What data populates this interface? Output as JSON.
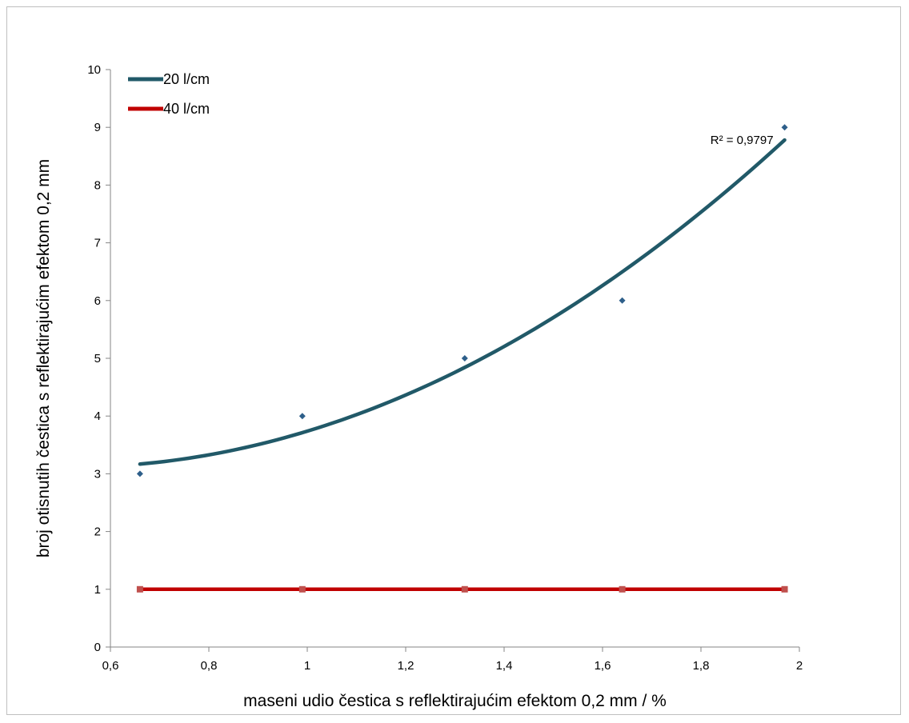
{
  "chart_data": {
    "type": "scatter",
    "xlabel": "maseni udio čestica s reflektirajućim efektom 0,2 mm / %",
    "ylabel": "broj otisnutih čestica s reflektirajućim efektom 0,2 mm",
    "xlim": [
      0.6,
      2
    ],
    "ylim": [
      0,
      10
    ],
    "xticks": [
      0.6,
      0.8,
      1,
      1.2,
      1.4,
      1.6,
      1.8,
      2
    ],
    "xtick_labels": [
      "0,6",
      "0,8",
      "1",
      "1,2",
      "1,4",
      "1,6",
      "1,8",
      "2"
    ],
    "yticks": [
      0,
      1,
      2,
      3,
      4,
      5,
      6,
      7,
      8,
      9,
      10
    ],
    "ytick_labels": [
      "0",
      "1",
      "2",
      "3",
      "4",
      "5",
      "6",
      "7",
      "8",
      "9",
      "10"
    ],
    "grid": false,
    "legend_position": "top-left",
    "series": [
      {
        "name": "20 l/cm",
        "color": "#215968",
        "marker_color": "#2e5f8a",
        "x": [
          0.66,
          0.99,
          1.32,
          1.64,
          1.97
        ],
        "y": [
          3,
          4,
          5,
          6,
          9
        ],
        "trendline": {
          "type": "polynomial",
          "order": 2,
          "r2_label": "R² = 0,9797"
        }
      },
      {
        "name": "40 l/cm",
        "color": "#c00000",
        "marker_color": "#c0504d",
        "x": [
          0.66,
          0.99,
          1.32,
          1.64,
          1.97
        ],
        "y": [
          1,
          1,
          1,
          1,
          1
        ]
      }
    ]
  }
}
